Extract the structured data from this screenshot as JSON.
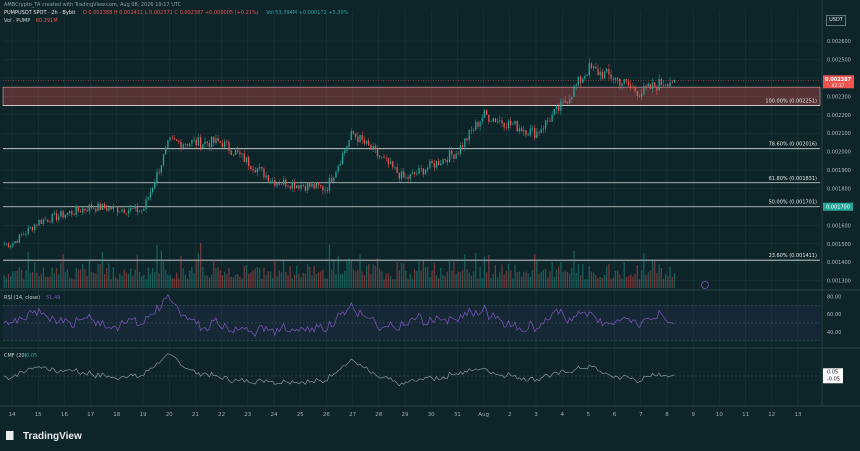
{
  "header": {
    "creator": "AMBCrypto_TA created with TradingView.com, Aug 08, 2026 19:17 UTC",
    "symbol": "PUMPUSDT SPOT · 2h · Bybit",
    "ohlc": "O 0.002388  H 0.002411  L 0.002371  C 0.002387  +0.000005 (+0.21%)",
    "vol_line": "Vol 53.394M  +0.000172  +5.39%",
    "vol_label": "Vol · PUMP",
    "vol_value": "60.291M"
  },
  "quote": "USDT",
  "price_badge": {
    "value": "0.002387",
    "timer": "42:37"
  },
  "price_axis": [
    "0.002600",
    "0.002500",
    "0.002400",
    "0.002300",
    "0.002200",
    "0.002100",
    "0.002000",
    "0.001900",
    "0.001800",
    "0.001700",
    "0.001600",
    "0.001500",
    "0.001400",
    "0.001300"
  ],
  "fib_levels": [
    {
      "label": "100.00% (0.002251)"
    },
    {
      "label": "78.60% (0.002016)"
    },
    {
      "label": "61.80% (0.001831)"
    },
    {
      "label": "50.00% (0.001701)",
      "badge": "0.001700"
    },
    {
      "label": "23.60% (0.001411)"
    }
  ],
  "rsi": {
    "title": "RSI (14, close)",
    "value": "51.49",
    "axis": [
      "80.00",
      "60.00",
      "40.00"
    ]
  },
  "cmf": {
    "title": "CMF (20)",
    "value": "0.05",
    "axis": [
      "0.05",
      "-0.05"
    ]
  },
  "time_axis": [
    "14",
    "15",
    "16",
    "17",
    "18",
    "19",
    "20",
    "21",
    "22",
    "23",
    "24",
    "25",
    "26",
    "27",
    "28",
    "29",
    "30",
    "31",
    "Aug",
    "2",
    "3",
    "4",
    "5",
    "6",
    "7",
    "8",
    "9",
    "10",
    "11",
    "12",
    "13"
  ],
  "brand": "TradingView",
  "colors": {
    "up": "#26a69a",
    "down": "#ef5350",
    "zone": "#ef5350",
    "rsi": "#7e57c2",
    "cmf": "#9aa8aa",
    "bg": "#0d2428"
  },
  "chart_data": {
    "type": "candlestick",
    "timeframe": "2h",
    "ylim": [
      0.00126,
      0.00266
    ],
    "scale": "linear",
    "resistance_zone": [
      0.00225,
      0.00235
    ],
    "fib_levels": [
      0.002251,
      0.002016,
      0.001831,
      0.001701,
      0.001411
    ],
    "key_closes": [
      {
        "date": "Jul 14",
        "close": 0.0015
      },
      {
        "date": "Jul 15",
        "close": 0.00162
      },
      {
        "date": "Jul 17",
        "close": 0.0017
      },
      {
        "date": "Jul 19",
        "close": 0.00168
      },
      {
        "date": "Jul 20",
        "close": 0.00205
      },
      {
        "date": "Jul 22",
        "close": 0.00205
      },
      {
        "date": "Jul 24",
        "close": 0.00184
      },
      {
        "date": "Jul 26",
        "close": 0.0018
      },
      {
        "date": "Jul 27",
        "close": 0.0021
      },
      {
        "date": "Jul 29",
        "close": 0.00185
      },
      {
        "date": "Jul 31",
        "close": 0.002
      },
      {
        "date": "Aug 1",
        "close": 0.0022
      },
      {
        "date": "Aug 3",
        "close": 0.0021
      },
      {
        "date": "Aug 4",
        "close": 0.00225
      },
      {
        "date": "Aug 5",
        "close": 0.00245
      },
      {
        "date": "Aug 6",
        "close": 0.0024
      },
      {
        "date": "Aug 7",
        "close": 0.00232
      },
      {
        "date": "Aug 8",
        "close": 0.002387
      }
    ],
    "rsi_ylim": [
      25,
      85
    ],
    "cmf_ylim": [
      -0.35,
      0.35
    ],
    "cmf_last": 0.05,
    "rsi_last": 51.49
  }
}
